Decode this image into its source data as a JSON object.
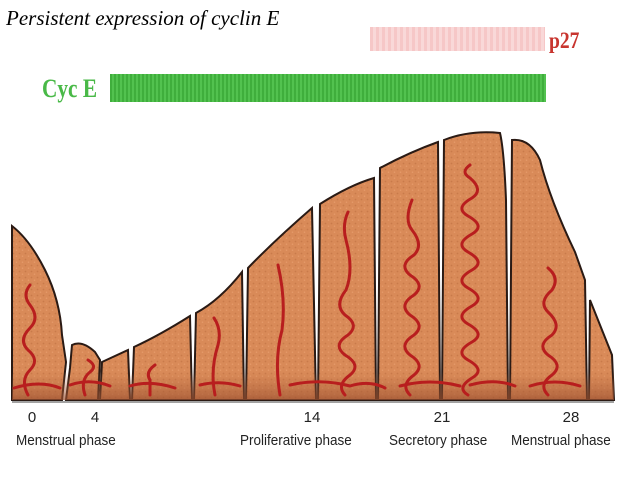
{
  "title": "Persistent expression of cyclin E",
  "bars": {
    "p27": {
      "label": "p27",
      "color": "#f7cccc"
    },
    "cyce": {
      "label": "Cyc E",
      "color": "#49b947"
    }
  },
  "timeline": {
    "days": [
      "0",
      "4",
      "14",
      "21",
      "28"
    ],
    "phases": [
      "Menstrual phase",
      "Proliferative phase",
      "Secretory phase",
      "Menstrual phase"
    ]
  },
  "colors": {
    "tissue": "#d98a58",
    "tissue_dark": "#a85a35",
    "vessel": "#b81e1e",
    "outline": "#2a1a14"
  }
}
